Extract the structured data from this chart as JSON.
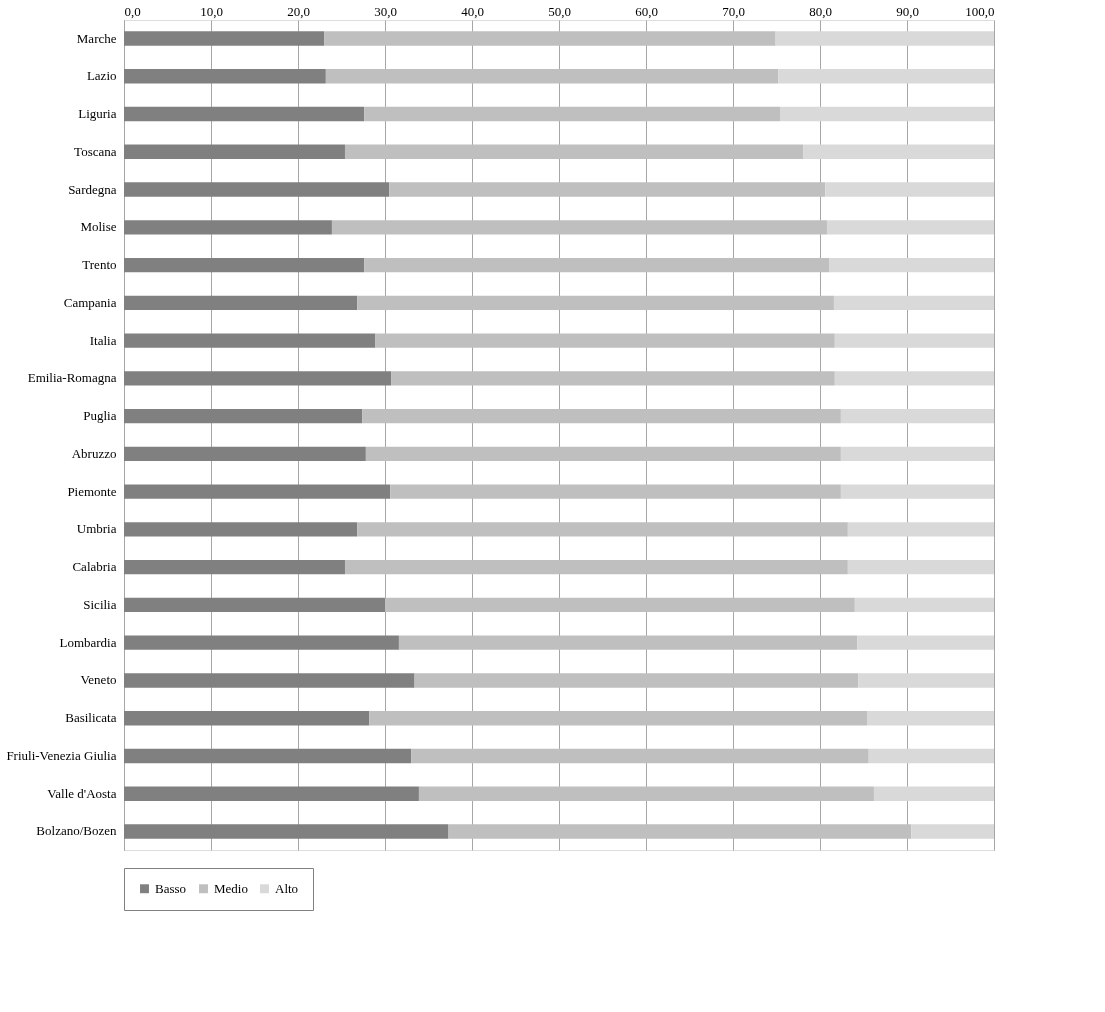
{
  "chart_data": {
    "type": "bar",
    "orientation": "horizontal",
    "stacked": true,
    "categories": [
      "Marche",
      "Lazio",
      "Liguria",
      "Toscana",
      "Sardegna",
      "Molise",
      "Trento",
      "Campania",
      "Italia",
      "Emilia-Romagna",
      "Puglia",
      "Abruzzo",
      "Piemonte",
      "Umbria",
      "Calabria",
      "Sicilia",
      "Lombardia",
      "Veneto",
      "Basilicata",
      "Friuli-Venezia Giulia",
      "Valle d'Aosta",
      "Bolzano/Bozen"
    ],
    "series": [
      {
        "name": "Basso",
        "color": "#808080",
        "values": [
          23.0,
          23.2,
          27.6,
          25.4,
          30.5,
          23.9,
          27.6,
          26.8,
          28.9,
          30.7,
          27.4,
          27.8,
          30.6,
          26.8,
          25.4,
          30.0,
          31.6,
          33.4,
          28.2,
          33.0,
          33.9,
          37.3
        ]
      },
      {
        "name": "Medio",
        "color": "#bfbfbf",
        "values": [
          51.9,
          52.0,
          47.8,
          52.7,
          50.1,
          56.9,
          53.5,
          54.8,
          52.8,
          51.0,
          55.0,
          54.6,
          51.8,
          56.4,
          57.8,
          54.0,
          52.7,
          51.0,
          57.2,
          52.6,
          52.3,
          53.2
        ]
      },
      {
        "name": "Alto",
        "color": "#d9d9d9",
        "values": [
          25.1,
          24.8,
          24.6,
          21.9,
          19.4,
          19.2,
          18.9,
          18.4,
          18.3,
          18.3,
          17.6,
          17.6,
          17.6,
          16.8,
          16.8,
          16.0,
          15.7,
          15.6,
          14.6,
          14.4,
          13.8,
          9.5
        ]
      }
    ],
    "xlim": [
      0,
      100
    ],
    "xticks": [
      {
        "value": 0,
        "label": "0,0"
      },
      {
        "value": 10,
        "label": "10,0"
      },
      {
        "value": 20,
        "label": "20,0"
      },
      {
        "value": 30,
        "label": "30,0"
      },
      {
        "value": 40,
        "label": "40,0"
      },
      {
        "value": 50,
        "label": "50,0"
      },
      {
        "value": 60,
        "label": "60,0"
      },
      {
        "value": 70,
        "label": "70,0"
      },
      {
        "value": 80,
        "label": "80,0"
      },
      {
        "value": 90,
        "label": "90,0"
      },
      {
        "value": 100,
        "label": "100,0"
      }
    ],
    "grid": "x",
    "legend": "bottom"
  }
}
